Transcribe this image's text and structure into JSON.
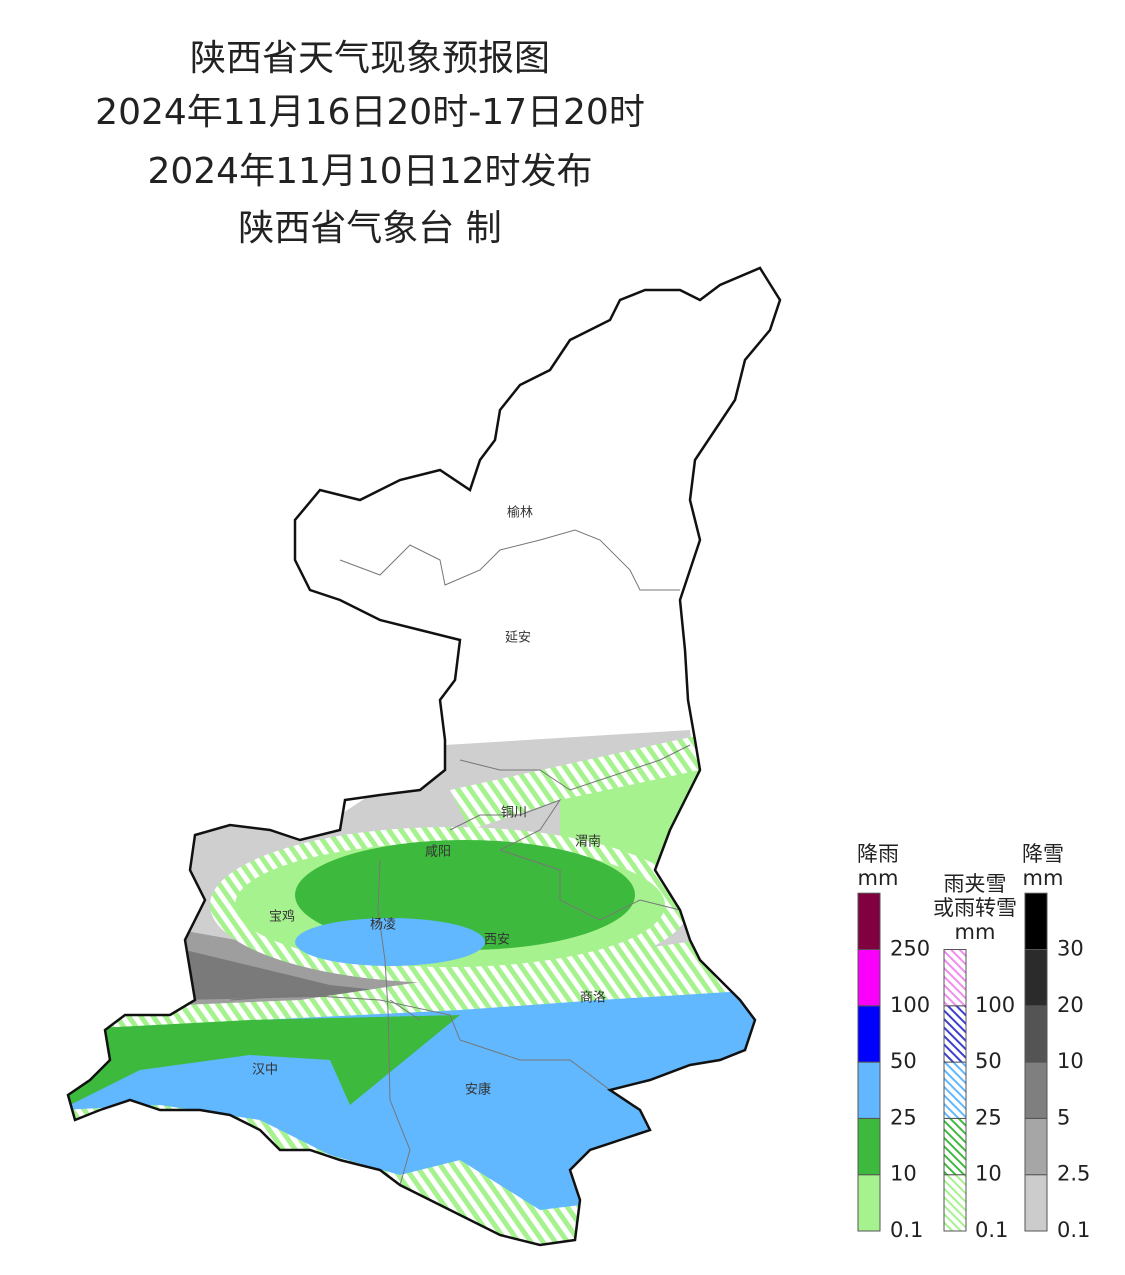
{
  "header": {
    "title": "陕西省天气现象预报图",
    "period": "2024年11月16日20时-17日20时",
    "issued": "2024年11月10日12时发布",
    "issuer": "陕西省气象台 制"
  },
  "cities": [
    "榆林",
    "延安",
    "铜川",
    "咸阳",
    "渭南",
    "宝鸡",
    "杨凌",
    "西安",
    "商洛",
    "汉中",
    "安康"
  ],
  "legend": [
    {
      "title": [
        "降雨",
        "mm"
      ],
      "levels": [
        0.1,
        10,
        25,
        50,
        100,
        250
      ],
      "colors": [
        "#a6f28f",
        "#3dba3d",
        "#61b8ff",
        "#0000ff",
        "#fa00fa",
        "#800040"
      ],
      "hatched": false
    },
    {
      "title": [
        "雨夹雪",
        "或雨转雪",
        "mm"
      ],
      "levels": [
        0.1,
        10,
        25,
        50,
        100
      ],
      "colors": [
        "#a6f28f",
        "#3dba3d",
        "#61b8ff",
        "#4040d0",
        "#f08ef0"
      ],
      "hatched": true
    },
    {
      "title": [
        "降雪",
        "mm"
      ],
      "levels": [
        0.1,
        2.5,
        5,
        10,
        20,
        30
      ],
      "colors": [
        "#cccccc",
        "#a6a6a6",
        "#7f7f7f",
        "#545454",
        "#2b2b2b",
        "#000000"
      ],
      "hatched": false
    }
  ]
}
